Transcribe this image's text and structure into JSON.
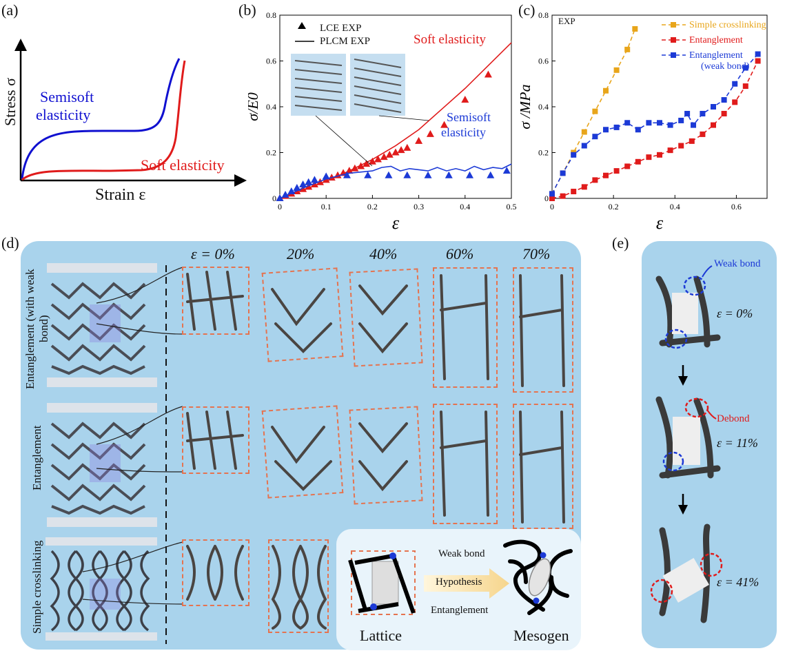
{
  "panel_a": {
    "label": "(a)",
    "ylabel": "Stress σ",
    "xlabel": "Strain ε",
    "curve_blue_label_1": "Semisoft",
    "curve_blue_label_2": "elasticity",
    "curve_red_label": "Soft elasticity",
    "colors": {
      "semisoft": "#1010d0",
      "soft": "#e01b1b"
    }
  },
  "panel_b": {
    "label": "(b)",
    "legend_lce": "LCE EXP",
    "legend_plcm": "PLCM EXP",
    "soft_label": "Soft elasticity",
    "semisoft_label_1": "Semisoft",
    "semisoft_label_2": "elasticity"
  },
  "panel_c": {
    "label": "(c)",
    "exp_tag": "EXP"
  },
  "chart_data": [
    {
      "type": "line",
      "title": "",
      "xlabel": "ε",
      "ylabel": "σ/E0",
      "xlim": [
        0,
        0.5
      ],
      "ylim": [
        0,
        0.8
      ],
      "xticks": [
        "0",
        "0.1",
        "0.2",
        "0.3",
        "0.4",
        "0.5"
      ],
      "yticks": [
        "0",
        "0.2",
        "0.4",
        "0.6",
        "0.8"
      ],
      "series": [
        {
          "name": "Soft PLCM EXP",
          "style": "line",
          "color": "#e01b1b",
          "x": [
            0,
            0.05,
            0.1,
            0.15,
            0.2,
            0.25,
            0.3,
            0.35,
            0.4,
            0.45,
            0.5
          ],
          "y": [
            0,
            0.035,
            0.075,
            0.12,
            0.17,
            0.23,
            0.3,
            0.39,
            0.48,
            0.58,
            0.68
          ]
        },
        {
          "name": "Soft LCE EXP",
          "style": "triangle",
          "color": "#e01b1b",
          "x": [
            0,
            0.012,
            0.025,
            0.037,
            0.05,
            0.062,
            0.075,
            0.087,
            0.1,
            0.112,
            0.125,
            0.137,
            0.15,
            0.162,
            0.175,
            0.187,
            0.2,
            0.212,
            0.225,
            0.237,
            0.25,
            0.262,
            0.275,
            0.3,
            0.325,
            0.355,
            0.4,
            0.45
          ],
          "y": [
            0,
            0.01,
            0.02,
            0.03,
            0.04,
            0.05,
            0.06,
            0.07,
            0.08,
            0.09,
            0.1,
            0.11,
            0.12,
            0.13,
            0.14,
            0.15,
            0.16,
            0.17,
            0.18,
            0.19,
            0.2,
            0.21,
            0.22,
            0.25,
            0.28,
            0.32,
            0.43,
            0.54
          ]
        },
        {
          "name": "Semisoft PLCM EXP",
          "style": "line",
          "color": "#1c3ad6",
          "x": [
            0,
            0.05,
            0.1,
            0.15,
            0.2,
            0.22,
            0.24,
            0.26,
            0.28,
            0.3,
            0.32,
            0.34,
            0.36,
            0.38,
            0.4,
            0.42,
            0.44,
            0.46,
            0.48,
            0.5
          ],
          "y": [
            0,
            0.045,
            0.085,
            0.11,
            0.12,
            0.135,
            0.14,
            0.12,
            0.13,
            0.125,
            0.12,
            0.135,
            0.12,
            0.13,
            0.12,
            0.14,
            0.125,
            0.135,
            0.13,
            0.15
          ]
        },
        {
          "name": "Semisoft LCE EXP",
          "style": "triangle",
          "color": "#1c3ad6",
          "x": [
            0,
            0.012,
            0.025,
            0.037,
            0.05,
            0.062,
            0.075,
            0.1,
            0.145,
            0.19,
            0.235,
            0.275,
            0.32,
            0.365,
            0.41,
            0.455,
            0.49
          ],
          "y": [
            0,
            0.015,
            0.03,
            0.045,
            0.06,
            0.07,
            0.08,
            0.095,
            0.1,
            0.1,
            0.1,
            0.1,
            0.1,
            0.1,
            0.1,
            0.1,
            0.12
          ]
        }
      ]
    },
    {
      "type": "line",
      "title": "",
      "xlabel": "ε",
      "ylabel": "σ /MPa",
      "xlim": [
        0,
        0.7
      ],
      "ylim": [
        0,
        0.8
      ],
      "xticks": [
        "0",
        "0.2",
        "0.4",
        "0.6"
      ],
      "yticks": [
        "0",
        "0.2",
        "0.4",
        "0.6",
        "0.8"
      ],
      "series": [
        {
          "name": "Simple crosslinking",
          "color": "#e8a51a",
          "x": [
            0,
            0.035,
            0.07,
            0.105,
            0.14,
            0.175,
            0.21,
            0.245,
            0.27
          ],
          "y": [
            0.02,
            0.11,
            0.2,
            0.29,
            0.38,
            0.47,
            0.56,
            0.65,
            0.74
          ]
        },
        {
          "name": "Entanglement",
          "color": "#e01b1b",
          "x": [
            0,
            0.035,
            0.07,
            0.105,
            0.14,
            0.175,
            0.21,
            0.245,
            0.28,
            0.315,
            0.35,
            0.385,
            0.42,
            0.455,
            0.49,
            0.525,
            0.56,
            0.595,
            0.63,
            0.67
          ],
          "y": [
            0,
            0.01,
            0.03,
            0.05,
            0.08,
            0.1,
            0.12,
            0.14,
            0.16,
            0.18,
            0.19,
            0.21,
            0.23,
            0.25,
            0.28,
            0.32,
            0.37,
            0.42,
            0.49,
            0.6
          ]
        },
        {
          "name": "Entanglement (weak bond)",
          "color": "#1c3ad6",
          "x": [
            0,
            0.035,
            0.07,
            0.105,
            0.14,
            0.175,
            0.21,
            0.245,
            0.28,
            0.315,
            0.35,
            0.385,
            0.42,
            0.44,
            0.46,
            0.49,
            0.525,
            0.56,
            0.595,
            0.63,
            0.67
          ],
          "y": [
            0.02,
            0.11,
            0.19,
            0.23,
            0.27,
            0.3,
            0.31,
            0.33,
            0.3,
            0.33,
            0.33,
            0.32,
            0.34,
            0.37,
            0.32,
            0.37,
            0.4,
            0.43,
            0.5,
            0.57,
            0.63
          ]
        }
      ],
      "legend_position": "top-right"
    }
  ],
  "panel_d": {
    "label": "(d)",
    "strains": [
      "ε = 0%",
      "20%",
      "40%",
      "60%",
      "70%"
    ],
    "row_labels": [
      "Entanglement (with weak bond)",
      "Entanglement",
      "Simple crosslinking"
    ],
    "hypothesis": {
      "weak_bond": "Weak bond",
      "arrow": "Hypothesis",
      "entanglement": "Entanglement",
      "lattice": "Lattice",
      "mesogen": "Mesogen"
    }
  },
  "panel_e": {
    "label": "(e)",
    "weak_bond": "Weak bond",
    "debond": "Debond",
    "strains": [
      "ε = 0%",
      "ε = 11%",
      "ε = 41%"
    ]
  }
}
